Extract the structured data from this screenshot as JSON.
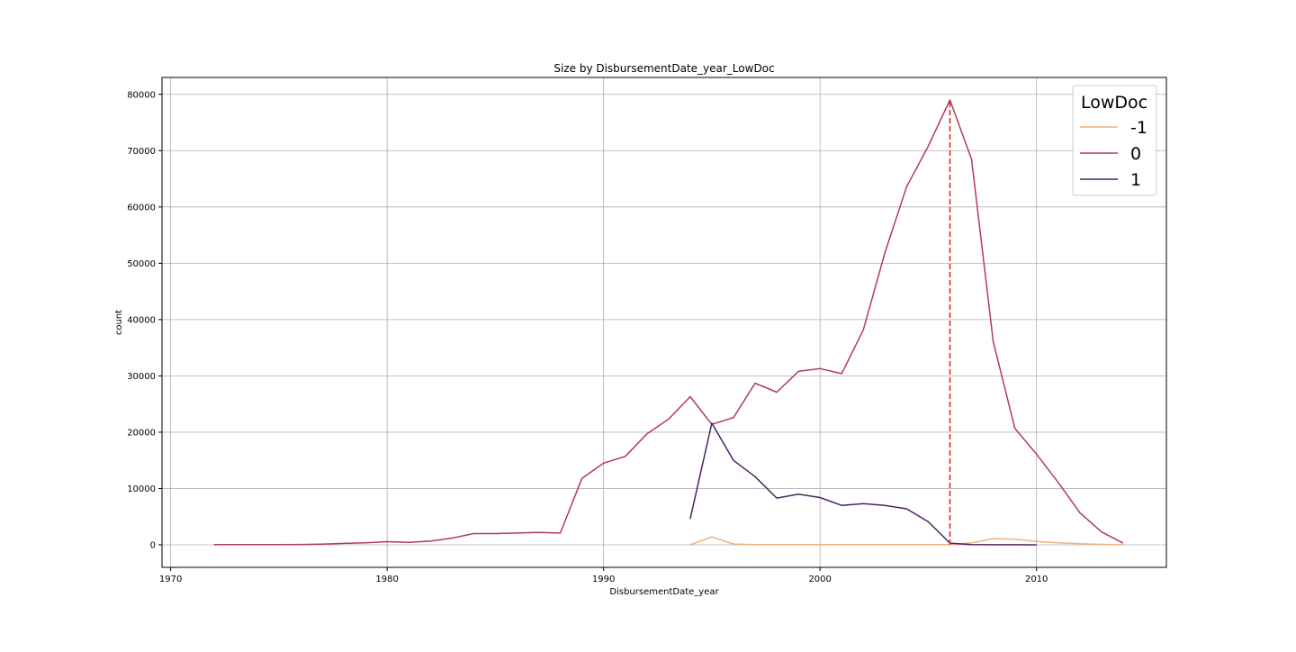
{
  "chart_data": {
    "type": "line",
    "title": "Size by DisbursementDate_year_LowDoc",
    "xlabel": "DisbursementDate_year",
    "ylabel": "count",
    "xlim": [
      1969.6,
      2016.0
    ],
    "ylim": [
      -4000,
      83000
    ],
    "x_ticks": [
      1970,
      1980,
      1990,
      2000,
      2010
    ],
    "y_ticks": [
      0,
      10000,
      20000,
      30000,
      40000,
      50000,
      60000,
      70000,
      80000
    ],
    "grid": true,
    "legend": {
      "title": "LowDoc",
      "placement": "top-right"
    },
    "series": [
      {
        "name": "-1",
        "color": "#f0b27f",
        "x": [
          1994,
          1995,
          1996,
          1997,
          1998,
          1999,
          2000,
          2001,
          2002,
          2003,
          2004,
          2005,
          2006,
          2007,
          2008,
          2009,
          2010,
          2011,
          2012,
          2013,
          2014
        ],
        "y": [
          0,
          1400,
          150,
          50,
          50,
          50,
          50,
          50,
          50,
          50,
          50,
          50,
          50,
          350,
          1100,
          1000,
          600,
          350,
          200,
          80,
          20
        ]
      },
      {
        "name": "0",
        "color": "#b3395f",
        "x": [
          1972,
          1973,
          1974,
          1975,
          1976,
          1977,
          1978,
          1979,
          1980,
          1981,
          1982,
          1983,
          1984,
          1985,
          1986,
          1987,
          1988,
          1989,
          1990,
          1991,
          1992,
          1993,
          1994,
          1995,
          1996,
          1997,
          1998,
          1999,
          2000,
          2001,
          2002,
          2003,
          2004,
          2005,
          2006,
          2007,
          2008,
          2009,
          2010,
          2011,
          2012,
          2013,
          2014
        ],
        "y": [
          50,
          30,
          30,
          40,
          60,
          120,
          250,
          350,
          550,
          450,
          650,
          1200,
          2000,
          2000,
          2100,
          2200,
          2100,
          11800,
          14500,
          15700,
          19700,
          22300,
          26300,
          21400,
          22600,
          28700,
          27100,
          30800,
          31300,
          30400,
          38200,
          51900,
          63600,
          70800,
          79000,
          68500,
          36100,
          20700,
          16100,
          11100,
          5700,
          2300,
          300
        ]
      },
      {
        "name": "1",
        "color": "#4b2362",
        "x": [
          1994,
          1995,
          1996,
          1997,
          1998,
          1999,
          2000,
          2001,
          2002,
          2003,
          2004,
          2005,
          2006,
          2007,
          2008,
          2009,
          2010
        ],
        "y": [
          4600,
          21600,
          15000,
          12100,
          8300,
          9000,
          8400,
          7000,
          7300,
          7000,
          6400,
          4100,
          300,
          50,
          20,
          10,
          5
        ]
      }
    ],
    "reference_line": {
      "x": 2006,
      "y": [
        0,
        79000
      ],
      "color": "#e02020",
      "style": "dashed"
    }
  }
}
